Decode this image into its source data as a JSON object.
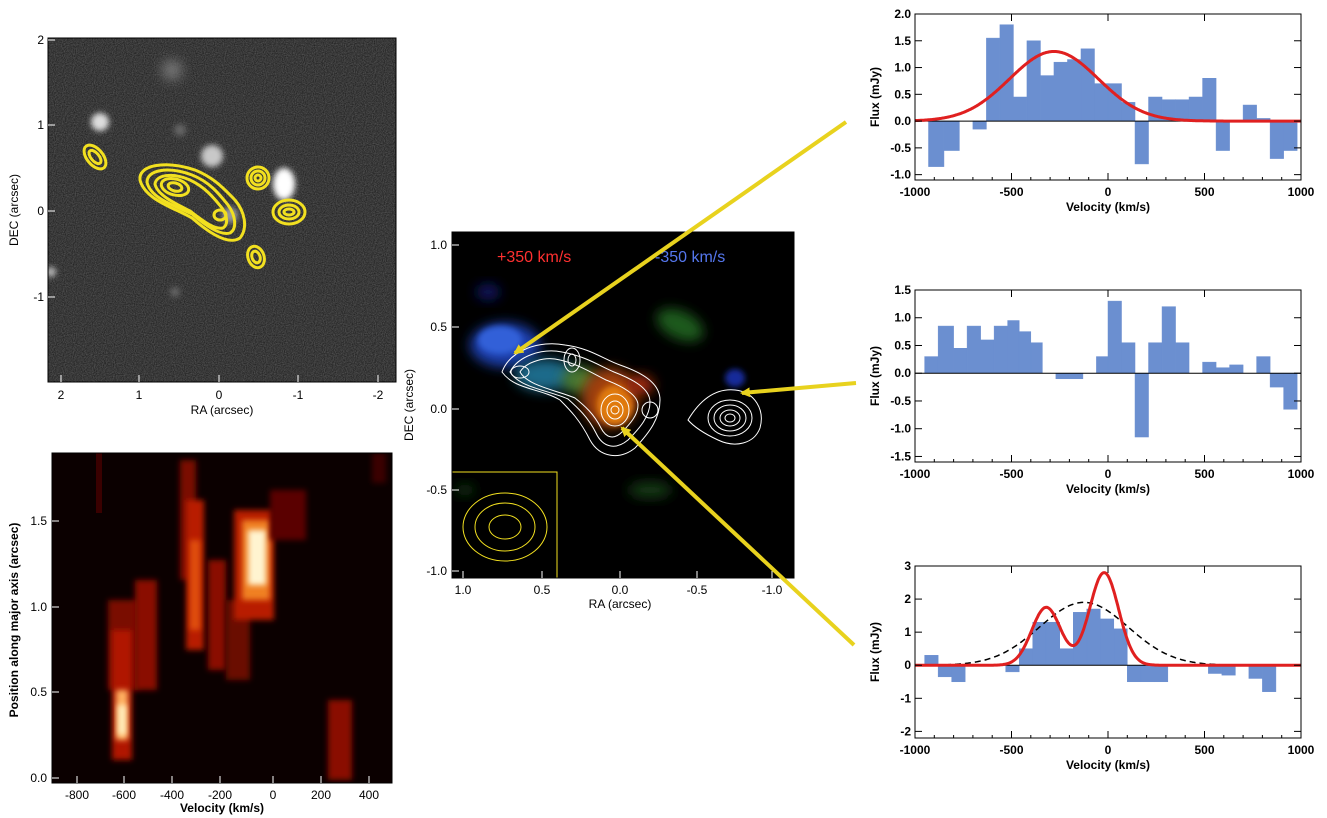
{
  "colors": {
    "hist_fill": "#6b8fd0",
    "hist_edge": "#3a5fa8",
    "fit_red": "#e02020",
    "contour_yellow": "#f2e020",
    "arrow_yellow": "#e8d21e",
    "red_label": "#ff3030",
    "blue_label": "#5577ee"
  },
  "image_panels": {
    "top_left": {
      "xlabel": "RA (arcsec)",
      "ylabel": "DEC (arcsec)",
      "xticks": [
        "2",
        "1",
        "0",
        "-1",
        "-2"
      ],
      "yticks": [
        "2",
        "1",
        "0",
        "-1"
      ]
    },
    "pv_diagram": {
      "xlabel": "Velocity (km/s)",
      "ylabel": "Position along major axis (arcsec)",
      "xticks": [
        "-800",
        "-600",
        "-400",
        "-200",
        "0",
        "200",
        "400"
      ],
      "yticks": [
        "1.5",
        "1.0",
        "0.5",
        "0.0"
      ]
    },
    "center": {
      "xlabel": "RA (arcsec)",
      "ylabel": "DEC (arcsec)",
      "xticks": [
        "1.0",
        "0.5",
        "0.0",
        "-0.5",
        "-1.0"
      ],
      "yticks": [
        "1.0",
        "0.5",
        "0.0",
        "-0.5",
        "-1.0"
      ],
      "label_red": "+350 km/s",
      "label_blue": "-350 km/s"
    }
  },
  "chart_data": [
    {
      "type": "bar",
      "panel": "spectrum-top",
      "xlabel": "Velocity (km/s)",
      "ylabel": "Flux (mJy)",
      "xlim": [
        -1000,
        1000
      ],
      "ylim": [
        -1.1,
        2.0
      ],
      "xticks": [
        "-1000",
        "-500",
        "0",
        "500",
        "1000"
      ],
      "yticks": [
        "2.0",
        "1.5",
        "1.0",
        "0.5",
        "0.0",
        "-0.5",
        "-1.0"
      ],
      "ytick_values": [
        2.0,
        1.5,
        1.0,
        0.5,
        0.0,
        -0.5,
        -1.0
      ],
      "bin_edges": [
        -930,
        -850,
        -770,
        -700,
        -630,
        -560,
        -490,
        -420,
        -350,
        -280,
        -210,
        -140,
        -70,
        0,
        70,
        140,
        210,
        280,
        350,
        420,
        490,
        560,
        630,
        700,
        770,
        840,
        910,
        980
      ],
      "values": [
        -0.85,
        -0.55,
        0.0,
        -0.15,
        1.55,
        1.8,
        0.45,
        1.5,
        0.85,
        1.1,
        1.15,
        1.35,
        0.7,
        0.7,
        0.35,
        -0.8,
        0.45,
        0.4,
        0.4,
        0.45,
        0.8,
        -0.55,
        0.0,
        0.3,
        0.05,
        -0.7,
        -0.55
      ],
      "fit": {
        "type": "gaussian",
        "amplitude": 1.3,
        "center": -280,
        "sigma": 230,
        "color": "#e02020"
      }
    },
    {
      "type": "bar",
      "panel": "spectrum-middle",
      "xlabel": "Velocity (km/s)",
      "ylabel": "Flux (mJy)",
      "xlim": [
        -1000,
        1000
      ],
      "ylim": [
        -1.6,
        1.5
      ],
      "xticks": [
        "-1000",
        "-500",
        "0",
        "500",
        "1000"
      ],
      "yticks": [
        "1.5",
        "1.0",
        "0.5",
        "0.0",
        "-0.5",
        "-1.0",
        "-1.5"
      ],
      "ytick_values": [
        1.5,
        1.0,
        0.5,
        0.0,
        -0.5,
        -1.0,
        -1.5
      ],
      "bin_edges": [
        -950,
        -880,
        -800,
        -730,
        -660,
        -590,
        -520,
        -460,
        -400,
        -340,
        -270,
        -200,
        -130,
        -60,
        0,
        70,
        140,
        210,
        280,
        350,
        420,
        490,
        560,
        630,
        700,
        770,
        840,
        910,
        980
      ],
      "values": [
        0.3,
        0.85,
        0.45,
        0.85,
        0.6,
        0.85,
        0.95,
        0.75,
        0.55,
        0.0,
        -0.1,
        -0.1,
        0.0,
        0.3,
        1.3,
        0.55,
        -1.15,
        0.55,
        1.2,
        0.55,
        0.0,
        0.2,
        0.1,
        0.15,
        0.0,
        0.3,
        -0.25,
        -0.65
      ],
      "fit": null
    },
    {
      "type": "bar",
      "panel": "spectrum-bottom",
      "xlabel": "Velocity (km/s)",
      "ylabel": "Flux (mJy)",
      "xlim": [
        -1000,
        1000
      ],
      "ylim": [
        -2.2,
        3.0
      ],
      "xticks": [
        "-1000",
        "-500",
        "0",
        "500",
        "1000"
      ],
      "yticks": [
        "3",
        "2",
        "1",
        "0",
        "-1",
        "-2"
      ],
      "ytick_values": [
        3,
        2,
        1,
        0,
        -1,
        -2
      ],
      "bin_edges": [
        -950,
        -880,
        -810,
        -740,
        -670,
        -600,
        -530,
        -460,
        -390,
        -320,
        -250,
        -180,
        -110,
        -40,
        30,
        100,
        170,
        240,
        310,
        380,
        450,
        520,
        590,
        660,
        730,
        800,
        870,
        940,
        1000
      ],
      "values": [
        0.3,
        -0.35,
        -0.5,
        0.0,
        0.0,
        0.0,
        -0.2,
        0.5,
        1.3,
        1.3,
        0.5,
        1.6,
        1.7,
        1.4,
        1.1,
        -0.5,
        -0.5,
        -0.5,
        0.0,
        0.0,
        0.0,
        -0.25,
        -0.3,
        0.0,
        -0.4,
        -0.8,
        0.0,
        0.0
      ],
      "fit": {
        "type": "double_gaussian",
        "components": [
          {
            "amplitude": 1.75,
            "center": -320,
            "sigma": 75
          },
          {
            "amplitude": 2.8,
            "center": -20,
            "sigma": 75
          }
        ],
        "color": "#e02020"
      },
      "fit2": {
        "type": "gaussian",
        "amplitude": 1.9,
        "center": -125,
        "sigma": 230,
        "style": "dashed",
        "color": "#000000"
      }
    }
  ]
}
